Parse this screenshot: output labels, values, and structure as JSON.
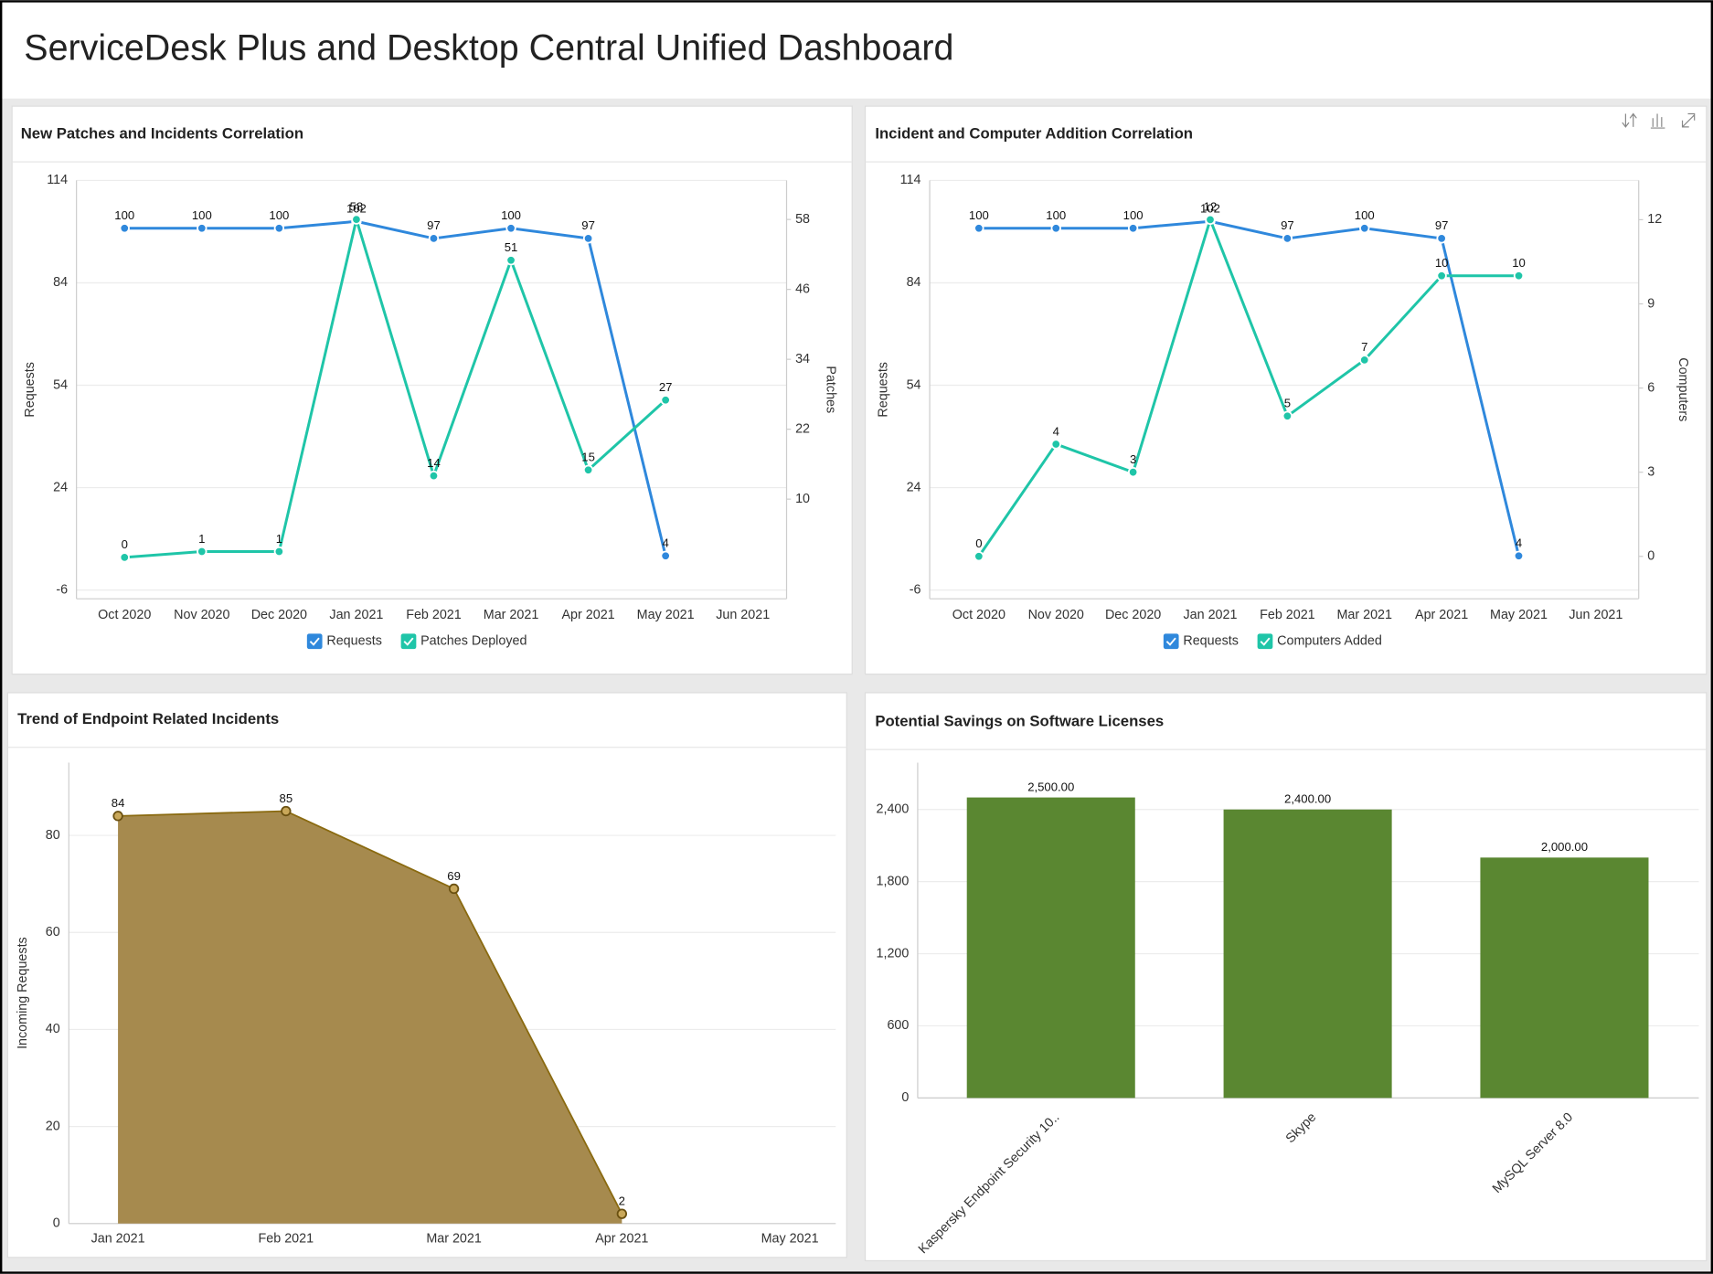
{
  "title": "ServiceDesk Plus and Desktop Central Unified Dashboard",
  "chart_data": [
    {
      "type": "line",
      "title": "New Patches and Incidents Correlation",
      "categories": [
        "Oct 2020",
        "Nov 2020",
        "Dec 2020",
        "Jan 2021",
        "Feb 2021",
        "Mar 2021",
        "Apr 2021",
        "May 2021",
        "Jun 2021"
      ],
      "series": [
        {
          "name": "Requests",
          "color": "#2f88dc",
          "values": [
            100,
            100,
            100,
            102,
            97,
            100,
            97,
            4,
            null
          ]
        },
        {
          "name": "Patches Deployed",
          "color": "#1fc5a8",
          "axis": "y2",
          "values": [
            0,
            1,
            1,
            58,
            14,
            51,
            15,
            27,
            null
          ]
        }
      ],
      "y_label": "Requests",
      "y2_label": "Patches",
      "ylim": [
        -6,
        114
      ],
      "yticks": [
        -6,
        24,
        54,
        84,
        114
      ],
      "y2lim": [
        -5.6,
        64.7
      ],
      "y2ticks": [
        10,
        22,
        34,
        46,
        58
      ],
      "grid": true,
      "legend": "bottom"
    },
    {
      "type": "line",
      "title": "Incident and Computer Addition Correlation",
      "categories": [
        "Oct 2020",
        "Nov 2020",
        "Dec 2020",
        "Jan 2021",
        "Feb 2021",
        "Mar 2021",
        "Apr 2021",
        "May 2021",
        "Jun 2021"
      ],
      "series": [
        {
          "name": "Requests",
          "color": "#2f88dc",
          "values": [
            100,
            100,
            100,
            102,
            97,
            100,
            97,
            4,
            null
          ]
        },
        {
          "name": "Computers Added",
          "color": "#1fc5a8",
          "axis": "y2",
          "values": [
            0,
            4,
            3,
            12,
            5,
            7,
            10,
            10,
            null
          ]
        }
      ],
      "y_label": "Requests",
      "y2_label": "Computers",
      "ylim": [
        -6,
        114
      ],
      "yticks": [
        -6,
        24,
        54,
        84,
        114
      ],
      "y2lim": [
        -1.2,
        13.4
      ],
      "y2ticks": [
        0,
        3,
        6,
        9,
        12
      ],
      "grid": true,
      "legend": "bottom"
    },
    {
      "type": "area",
      "title": "Trend of Endpoint Related Incidents",
      "categories": [
        "Jan 2021",
        "Feb 2021",
        "Mar 2021",
        "Apr 2021",
        "May 2021"
      ],
      "values": [
        84,
        85,
        69,
        2,
        null
      ],
      "color": "#a68a4e",
      "y_label": "Incoming Requests",
      "ylim": [
        0,
        95
      ],
      "yticks": [
        0,
        20,
        40,
        60,
        80
      ],
      "grid": true
    },
    {
      "type": "bar",
      "title": "Potential Savings on Software Licenses",
      "categories": [
        "Kaspersky Endpoint Security 10..",
        "Skype",
        "MySQL Server 8.0"
      ],
      "values": [
        2500,
        2400,
        2000
      ],
      "value_labels": [
        "2,500.00",
        "2,400.00",
        "2,000.00"
      ],
      "color": "#5a8731",
      "ylim": [
        0,
        2790
      ],
      "yticks": [
        0,
        600,
        {
          "value": 1200,
          "label": "1,200"
        },
        {
          "value": 1800,
          "label": "1,800"
        },
        {
          "value": 2400,
          "label": "2,400"
        }
      ],
      "grid": true
    }
  ]
}
